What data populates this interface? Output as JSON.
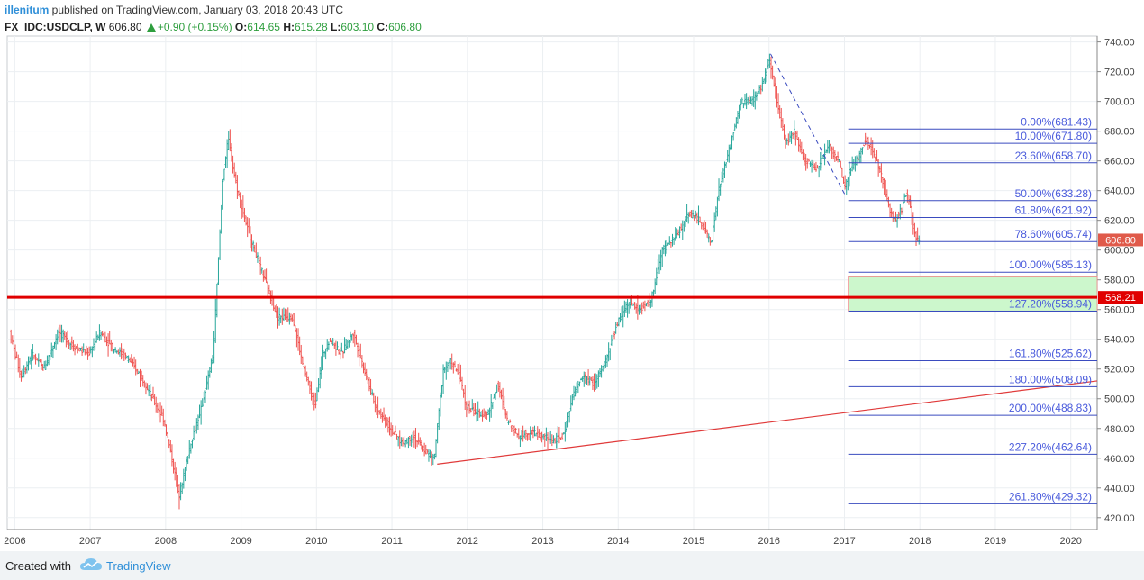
{
  "header": {
    "user": "illenitum",
    "rest": " published on TradingView.com, January 03, 2018 20:43 UTC"
  },
  "symbol_line": {
    "symbol": "FX_IDC:USDCLP, W",
    "last": "606.80",
    "change": "+0.90 (+0.15%)",
    "open_label": "O:",
    "open": "614.65",
    "high_label": "H:",
    "high": "615.28",
    "low_label": "L:",
    "low": "603.10",
    "close_label": "C:",
    "close": "606.80"
  },
  "footer": {
    "created_with": "Created with",
    "brand": "TradingView"
  },
  "colors": {
    "up": "#26a69a",
    "down": "#ef5350",
    "fib": "#3a4bbf",
    "fib_text": "#4a5bdc",
    "trend": "#e03a3a",
    "support": "#e00000",
    "zone": "#ccf7cc",
    "accent": "#2f8fd8",
    "price_tag": "#e05a4a"
  },
  "chart_data": {
    "type": "candlestick",
    "title": "",
    "xlabel": "",
    "ylabel": "",
    "ylim": [
      412,
      744
    ],
    "xlim": [
      2005.9,
      2020.35
    ],
    "y_ticks": [
      "420.00",
      "440.00",
      "460.00",
      "480.00",
      "500.00",
      "520.00",
      "540.00",
      "560.00",
      "580.00",
      "600.00",
      "620.00",
      "640.00",
      "660.00",
      "680.00",
      "700.00",
      "720.00",
      "740.00"
    ],
    "x_ticks": [
      "2006",
      "2007",
      "2008",
      "2009",
      "2010",
      "2011",
      "2012",
      "2013",
      "2014",
      "2015",
      "2016",
      "2017",
      "2018",
      "2019",
      "2020"
    ],
    "grid": true,
    "last_price": "606.80",
    "support_price": "568.21",
    "price_path": [
      [
        2005.95,
        545
      ],
      [
        2006.1,
        515
      ],
      [
        2006.25,
        530
      ],
      [
        2006.4,
        520
      ],
      [
        2006.6,
        545
      ],
      [
        2006.8,
        535
      ],
      [
        2007.0,
        530
      ],
      [
        2007.15,
        545
      ],
      [
        2007.3,
        535
      ],
      [
        2007.5,
        528
      ],
      [
        2007.7,
        515
      ],
      [
        2007.85,
        500
      ],
      [
        2008.0,
        485
      ],
      [
        2008.12,
        455
      ],
      [
        2008.2,
        435
      ],
      [
        2008.35,
        470
      ],
      [
        2008.5,
        495
      ],
      [
        2008.65,
        530
      ],
      [
        2008.78,
        650
      ],
      [
        2008.85,
        675
      ],
      [
        2008.95,
        645
      ],
      [
        2009.1,
        615
      ],
      [
        2009.3,
        585
      ],
      [
        2009.5,
        555
      ],
      [
        2009.7,
        555
      ],
      [
        2009.85,
        520
      ],
      [
        2010.0,
        495
      ],
      [
        2010.1,
        530
      ],
      [
        2010.2,
        540
      ],
      [
        2010.35,
        530
      ],
      [
        2010.5,
        545
      ],
      [
        2010.65,
        520
      ],
      [
        2010.8,
        495
      ],
      [
        2011.0,
        480
      ],
      [
        2011.15,
        470
      ],
      [
        2011.3,
        475
      ],
      [
        2011.45,
        465
      ],
      [
        2011.58,
        460
      ],
      [
        2011.7,
        520
      ],
      [
        2011.8,
        525
      ],
      [
        2011.92,
        515
      ],
      [
        2012.0,
        495
      ],
      [
        2012.15,
        490
      ],
      [
        2012.3,
        490
      ],
      [
        2012.42,
        510
      ],
      [
        2012.55,
        485
      ],
      [
        2012.7,
        475
      ],
      [
        2012.85,
        478
      ],
      [
        2013.0,
        475
      ],
      [
        2013.15,
        472
      ],
      [
        2013.3,
        475
      ],
      [
        2013.4,
        500
      ],
      [
        2013.55,
        515
      ],
      [
        2013.7,
        510
      ],
      [
        2013.85,
        525
      ],
      [
        2014.0,
        550
      ],
      [
        2014.15,
        565
      ],
      [
        2014.3,
        560
      ],
      [
        2014.45,
        565
      ],
      [
        2014.6,
        600
      ],
      [
        2014.8,
        610
      ],
      [
        2014.95,
        625
      ],
      [
        2015.1,
        620
      ],
      [
        2015.25,
        605
      ],
      [
        2015.35,
        640
      ],
      [
        2015.5,
        670
      ],
      [
        2015.65,
        700
      ],
      [
        2015.8,
        700
      ],
      [
        2015.92,
        710
      ],
      [
        2016.02,
        728
      ],
      [
        2016.12,
        700
      ],
      [
        2016.25,
        672
      ],
      [
        2016.35,
        680
      ],
      [
        2016.5,
        660
      ],
      [
        2016.65,
        655
      ],
      [
        2016.8,
        670
      ],
      [
        2016.95,
        660
      ],
      [
        2017.02,
        640
      ],
      [
        2017.1,
        655
      ],
      [
        2017.2,
        662
      ],
      [
        2017.3,
        675
      ],
      [
        2017.4,
        665
      ],
      [
        2017.5,
        652
      ],
      [
        2017.6,
        630
      ],
      [
        2017.68,
        620
      ],
      [
        2017.78,
        628
      ],
      [
        2017.85,
        640
      ],
      [
        2017.9,
        625
      ],
      [
        2017.95,
        610
      ],
      [
        2018.0,
        606.8
      ]
    ],
    "fib_levels": [
      {
        "label": "0.00%(681.43)",
        "price": 681.43,
        "x_start": 2017.05
      },
      {
        "label": "10.00%(671.80)",
        "price": 671.8,
        "x_start": 2017.05
      },
      {
        "label": "23.60%(658.70)",
        "price": 658.7,
        "x_start": 2017.05
      },
      {
        "label": "50.00%(633.28)",
        "price": 633.28,
        "x_start": 2017.05
      },
      {
        "label": "61.80%(621.92)",
        "price": 621.92,
        "x_start": 2017.05
      },
      {
        "label": "78.60%(605.74)",
        "price": 605.74,
        "x_start": 2017.05
      },
      {
        "label": "100.00%(585.13)",
        "price": 585.13,
        "x_start": 2017.05
      },
      {
        "label": "127.20%(558.94)",
        "price": 558.94,
        "x_start": 2017.05
      },
      {
        "label": "161.80%(525.62)",
        "price": 525.62,
        "x_start": 2017.05
      },
      {
        "label": "180.00%(508.09)",
        "price": 508.09,
        "x_start": 2017.05
      },
      {
        "label": "200.00%(488.83)",
        "price": 488.83,
        "x_start": 2017.05
      },
      {
        "label": "227.20%(462.64)",
        "price": 462.64,
        "x_start": 2017.05
      },
      {
        "label": "261.80%(429.32)",
        "price": 429.32,
        "x_start": 2017.05
      }
    ],
    "trendline": {
      "x1": 2011.6,
      "y1": 456,
      "x2": 2020.35,
      "y2": 512
    },
    "swing_dashed": {
      "x1": 2016.02,
      "y1": 732,
      "x2": 2017.02,
      "y2": 636
    },
    "zone": {
      "x1": 2017.05,
      "x2": 2020.35,
      "y_top": 582,
      "y_bottom": 559
    }
  }
}
